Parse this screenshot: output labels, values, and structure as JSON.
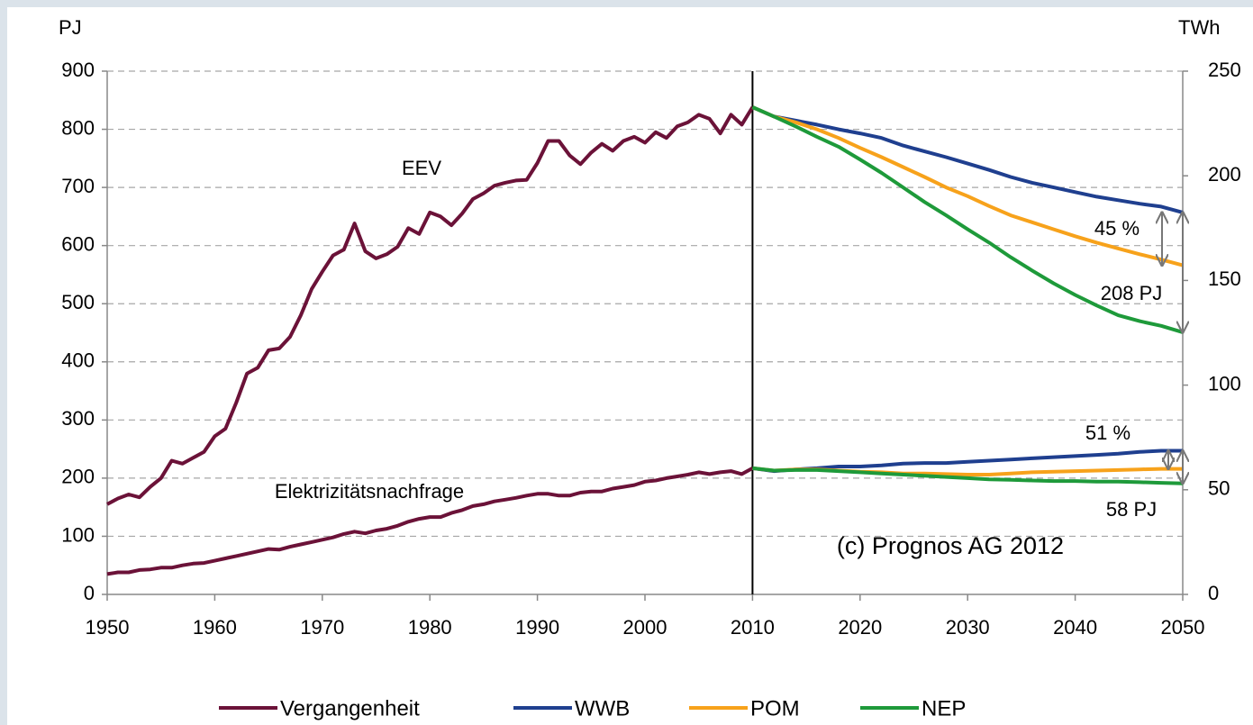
{
  "chart_data": {
    "type": "line",
    "y_unit": "PJ",
    "y2_unit": "TWh",
    "xlim": [
      1950,
      2050
    ],
    "xticks": [
      1950,
      1960,
      1970,
      1980,
      1990,
      2000,
      2010,
      2020,
      2030,
      2040,
      2050
    ],
    "ylim": [
      0,
      900
    ],
    "yticks": [
      0,
      100,
      200,
      300,
      400,
      500,
      600,
      700,
      800,
      900
    ],
    "y2lim": [
      0,
      250
    ],
    "y2ticks": [
      0,
      50,
      100,
      150,
      200,
      250
    ],
    "grid": true,
    "legend": "bottom",
    "divider_x": 2010,
    "annotations": [
      "EEV",
      "Elektrizitätsnachfrage",
      "45 %",
      "208 PJ",
      "51 %",
      "58 PJ",
      "(c) Prognos  AG 2012"
    ],
    "series": [
      {
        "name": "Vergangenheit",
        "color": "#6b1238",
        "x": [
          1950,
          1951,
          1952,
          1953,
          1954,
          1955,
          1956,
          1957,
          1958,
          1959,
          1960,
          1961,
          1962,
          1963,
          1964,
          1965,
          1966,
          1967,
          1968,
          1969,
          1970,
          1971,
          1972,
          1973,
          1974,
          1975,
          1976,
          1977,
          1978,
          1979,
          1980,
          1981,
          1982,
          1983,
          1984,
          1985,
          1986,
          1987,
          1988,
          1989,
          1990,
          1991,
          1992,
          1993,
          1994,
          1995,
          1996,
          1997,
          1998,
          1999,
          2000,
          2001,
          2002,
          2003,
          2004,
          2005,
          2006,
          2007,
          2008,
          2009,
          2010
        ],
        "values": [
          155,
          165,
          172,
          167,
          185,
          200,
          230,
          225,
          235,
          245,
          272,
          285,
          330,
          380,
          390,
          420,
          423,
          443,
          480,
          525,
          555,
          583,
          593,
          638,
          590,
          578,
          585,
          598,
          630,
          620,
          657,
          650,
          635,
          655,
          680,
          690,
          703,
          708,
          712,
          713,
          742,
          780,
          780,
          755,
          740,
          760,
          775,
          763,
          780,
          787,
          777,
          795,
          785,
          805,
          812,
          825,
          818,
          793,
          825,
          808,
          838
        ],
        "values_electricity": [
          35,
          38,
          38,
          42,
          43,
          46,
          46,
          50,
          53,
          54,
          58,
          62,
          66,
          70,
          74,
          78,
          77,
          82,
          86,
          90,
          94,
          98,
          104,
          108,
          105,
          110,
          113,
          118,
          125,
          130,
          133,
          133,
          140,
          145,
          152,
          155,
          160,
          163,
          166,
          170,
          173,
          173,
          170,
          170,
          175,
          177,
          177,
          182,
          185,
          188,
          194,
          196,
          200,
          203,
          206,
          210,
          207,
          210,
          212,
          207,
          217
        ]
      },
      {
        "name": "WWB",
        "color": "#1f3f8f",
        "x": [
          2010,
          2012,
          2014,
          2016,
          2018,
          2020,
          2022,
          2024,
          2026,
          2028,
          2030,
          2032,
          2034,
          2036,
          2038,
          2040,
          2042,
          2044,
          2046,
          2048,
          2050
        ],
        "values": [
          838,
          822,
          815,
          808,
          800,
          793,
          785,
          772,
          762,
          752,
          741,
          730,
          718,
          708,
          700,
          692,
          684,
          678,
          672,
          667,
          657
        ],
        "values_electricity": [
          217,
          212,
          215,
          217,
          220,
          220,
          222,
          225,
          226,
          226,
          228,
          230,
          232,
          234,
          236,
          238,
          240,
          242,
          245,
          247,
          247
        ]
      },
      {
        "name": "POM",
        "color": "#f7a21b",
        "x": [
          2010,
          2012,
          2014,
          2016,
          2018,
          2020,
          2022,
          2024,
          2026,
          2028,
          2030,
          2032,
          2034,
          2036,
          2038,
          2040,
          2042,
          2044,
          2046,
          2048,
          2050
        ],
        "values": [
          838,
          822,
          812,
          800,
          785,
          768,
          752,
          735,
          718,
          700,
          685,
          668,
          652,
          640,
          628,
          616,
          605,
          595,
          585,
          576,
          566
        ],
        "values_electricity": [
          217,
          213,
          215,
          215,
          213,
          211,
          210,
          208,
          208,
          207,
          206,
          206,
          208,
          210,
          211,
          212,
          213,
          214,
          215,
          216,
          216
        ]
      },
      {
        "name": "NEP",
        "color": "#1e9a3a",
        "x": [
          2010,
          2012,
          2014,
          2016,
          2018,
          2020,
          2022,
          2024,
          2026,
          2028,
          2030,
          2032,
          2034,
          2036,
          2038,
          2040,
          2042,
          2044,
          2046,
          2048,
          2050
        ],
        "values": [
          838,
          822,
          805,
          787,
          770,
          748,
          725,
          700,
          675,
          652,
          628,
          605,
          580,
          557,
          535,
          515,
          497,
          480,
          470,
          462,
          451
        ],
        "values_electricity": [
          217,
          213,
          214,
          214,
          212,
          210,
          208,
          206,
          204,
          202,
          200,
          198,
          197,
          196,
          195,
          195,
          194,
          194,
          193,
          192,
          191
        ]
      }
    ]
  }
}
